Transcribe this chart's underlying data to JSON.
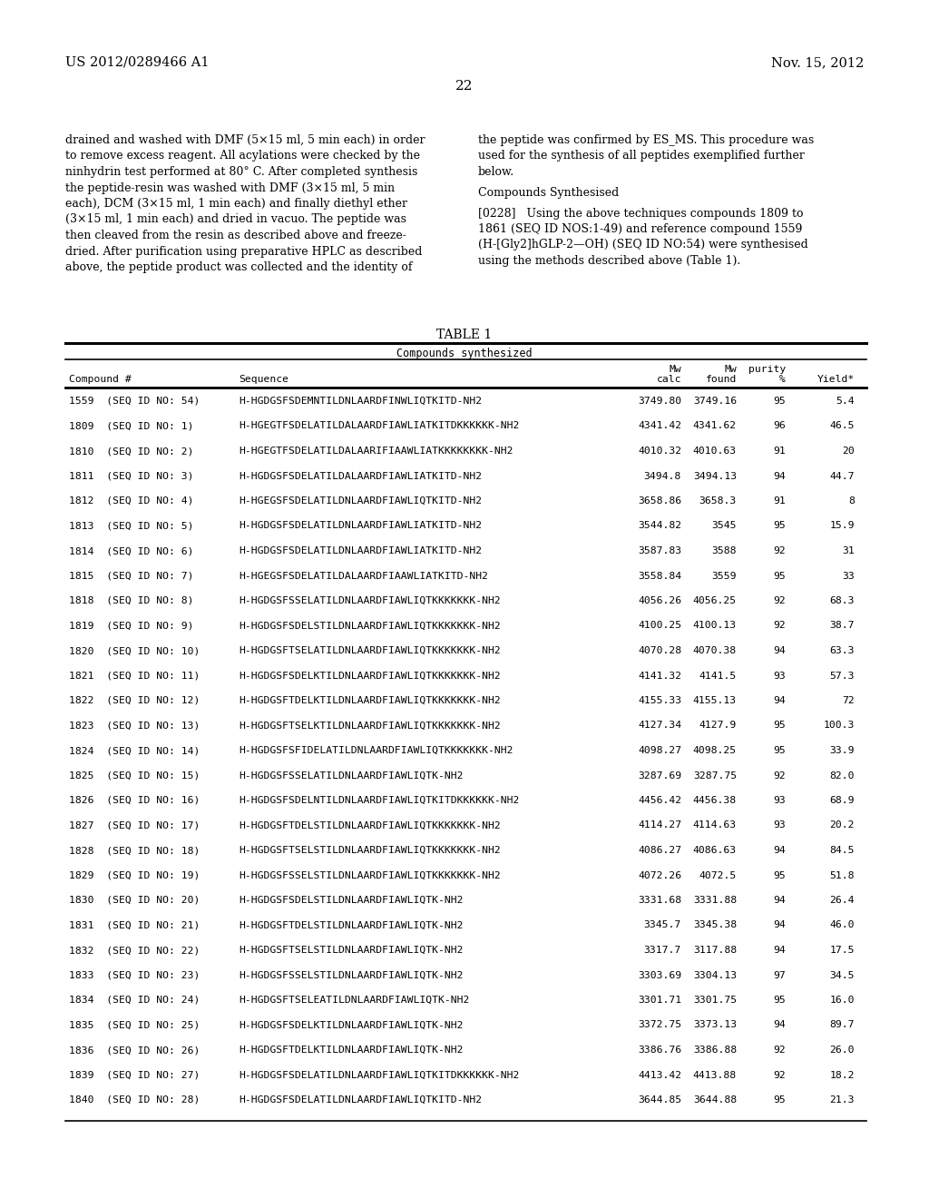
{
  "background_color": "#ffffff",
  "header_left": "US 2012/0289466 A1",
  "header_right": "Nov. 15, 2012",
  "page_number": "22",
  "left_column_text": [
    "drained and washed with DMF (5×15 ml, 5 min each) in order",
    "to remove excess reagent. All acylations were checked by the",
    "ninhydrin test performed at 80° C. After completed synthesis",
    "the peptide-resin was washed with DMF (3×15 ml, 5 min",
    "each), DCM (3×15 ml, 1 min each) and finally diethyl ether",
    "(3×15 ml, 1 min each) and dried in vacuo. The peptide was",
    "then cleaved from the resin as described above and freeze-",
    "dried. After purification using preparative HPLC as described",
    "above, the peptide product was collected and the identity of"
  ],
  "right_col_line1": [
    "the peptide was confirmed by ES_MS. This procedure was",
    "used for the synthesis of all peptides exemplified further",
    "below."
  ],
  "right_col_heading": "Compounds Synthesised",
  "right_col_para": [
    "[0228]   Using the above techniques compounds 1809 to",
    "1861 (SEQ ID NOS:1-49) and reference compound 1559",
    "(H-[Gly2]hGLP-2—OH) (SEQ ID NO:54) were synthesised",
    "using the methods described above (Table 1)."
  ],
  "table_title": "TABLE 1",
  "table_subtitle": "Compounds synthesized",
  "table_data": [
    [
      "1559  (SEQ ID NO: 54)",
      "H-HGDGSFSDEMNTILDNLAARDFINWLIQTKITD-NH2",
      "3749.80",
      "3749.16",
      "95",
      "5.4"
    ],
    [
      "1809  (SEQ ID NO: 1)",
      "H-HGEGTFSDELATILDALAARDFIAWLIATKITDKKKKKK-NH2",
      "4341.42",
      "4341.62",
      "96",
      "46.5"
    ],
    [
      "1810  (SEQ ID NO: 2)",
      "H-HGEGTFSDELATILDALAARIFIAAWLIATKKKKKKKK-NH2",
      "4010.32",
      "4010.63",
      "91",
      "20"
    ],
    [
      "1811  (SEQ ID NO: 3)",
      "H-HGDGSFSDELATILDALAARDFIAWLIATKITD-NH2",
      "3494.8",
      "3494.13",
      "94",
      "44.7"
    ],
    [
      "1812  (SEQ ID NO: 4)",
      "H-HGEGSFSDELATILDNLAARDFIAWLIQTKITD-NH2",
      "3658.86",
      "3658.3",
      "91",
      "8"
    ],
    [
      "1813  (SEQ ID NO: 5)",
      "H-HGDGSFSDELATILDNLAARDFIAWLIATKITD-NH2",
      "3544.82",
      "3545",
      "95",
      "15.9"
    ],
    [
      "1814  (SEQ ID NO: 6)",
      "H-HGDGSFSDELATILDNLAARDFIAWLIATKITD-NH2",
      "3587.83",
      "3588",
      "92",
      "31"
    ],
    [
      "1815  (SEQ ID NO: 7)",
      "H-HGEGSFSDELATILDALAARDFIAAWLIATKITD-NH2",
      "3558.84",
      "3559",
      "95",
      "33"
    ],
    [
      "1818  (SEQ ID NO: 8)",
      "H-HGDGSFSSELATILDNLAARDFIAWLIQTKKKKKKK-NH2",
      "4056.26",
      "4056.25",
      "92",
      "68.3"
    ],
    [
      "1819  (SEQ ID NO: 9)",
      "H-HGDGSFSDELSTILDNLAARDFIAWLIQTKKKKKKK-NH2",
      "4100.25",
      "4100.13",
      "92",
      "38.7"
    ],
    [
      "1820  (SEQ ID NO: 10)",
      "H-HGDGSFTSELATILDNLAARDFIAWLIQTKKKKKKK-NH2",
      "4070.28",
      "4070.38",
      "94",
      "63.3"
    ],
    [
      "1821  (SEQ ID NO: 11)",
      "H-HGDGSFSDELKTILDNLAARDFIAWLIQTKKKKKKK-NH2",
      "4141.32",
      "4141.5",
      "93",
      "57.3"
    ],
    [
      "1822  (SEQ ID NO: 12)",
      "H-HGDGSFTDELKTILDNLAARDFIAWLIQTKKKKKKK-NH2",
      "4155.33",
      "4155.13",
      "94",
      "72"
    ],
    [
      "1823  (SEQ ID NO: 13)",
      "H-HGDGSFTSELKTILDNLAARDFIAWLIQTKKKKKKK-NH2",
      "4127.34",
      "4127.9",
      "95",
      "100.3"
    ],
    [
      "1824  (SEQ ID NO: 14)",
      "H-HGDGSFSFIDELATILDNLAARDFIAWLIQTKKKKKKK-NH2",
      "4098.27",
      "4098.25",
      "95",
      "33.9"
    ],
    [
      "1825  (SEQ ID NO: 15)",
      "H-HGDGSFSSELATILDNLAARDFIAWLIQTK-NH2",
      "3287.69",
      "3287.75",
      "92",
      "82.0"
    ],
    [
      "1826  (SEQ ID NO: 16)",
      "H-HGDGSFSDELNTILDNLAARDFIAWLIQTKITDKKKKKK-NH2",
      "4456.42",
      "4456.38",
      "93",
      "68.9"
    ],
    [
      "1827  (SEQ ID NO: 17)",
      "H-HGDGSFTDELSTILDNLAARDFIAWLIQTKKKKKKK-NH2",
      "4114.27",
      "4114.63",
      "93",
      "20.2"
    ],
    [
      "1828  (SEQ ID NO: 18)",
      "H-HGDGSFTSELSTILDNLAARDFIAWLIQTKKKKKKK-NH2",
      "4086.27",
      "4086.63",
      "94",
      "84.5"
    ],
    [
      "1829  (SEQ ID NO: 19)",
      "H-HGDGSFSSELSTILDNLAARDFIAWLIQTKKKKKKK-NH2",
      "4072.26",
      "4072.5",
      "95",
      "51.8"
    ],
    [
      "1830  (SEQ ID NO: 20)",
      "H-HGDGSFSDELSTILDNLAARDFIAWLIQTK-NH2",
      "3331.68",
      "3331.88",
      "94",
      "26.4"
    ],
    [
      "1831  (SEQ ID NO: 21)",
      "H-HGDGSFTDELSTILDNLAARDFIAWLIQTK-NH2",
      "3345.7",
      "3345.38",
      "94",
      "46.0"
    ],
    [
      "1832  (SEQ ID NO: 22)",
      "H-HGDGSFTSELSTILDNLAARDFIAWLIQTK-NH2",
      "3317.7",
      "3117.88",
      "94",
      "17.5"
    ],
    [
      "1833  (SEQ ID NO: 23)",
      "H-HGDGSFSSELSTILDNLAARDFIAWLIQTK-NH2",
      "3303.69",
      "3304.13",
      "97",
      "34.5"
    ],
    [
      "1834  (SEQ ID NO: 24)",
      "H-HGDGSFTSELEATILDNLAARDFIAWLIQTK-NH2",
      "3301.71",
      "3301.75",
      "95",
      "16.0"
    ],
    [
      "1835  (SEQ ID NO: 25)",
      "H-HGDGSFSDELKTILDNLAARDFIAWLIQTK-NH2",
      "3372.75",
      "3373.13",
      "94",
      "89.7"
    ],
    [
      "1836  (SEQ ID NO: 26)",
      "H-HGDGSFTDELKTILDNLAARDFIAWLIQTK-NH2",
      "3386.76",
      "3386.88",
      "92",
      "26.0"
    ],
    [
      "1839  (SEQ ID NO: 27)",
      "H-HGDGSFSDELATILDNLAARDFIAWLIQTKITDKKKKKK-NH2",
      "4413.42",
      "4413.88",
      "92",
      "18.2"
    ],
    [
      "1840  (SEQ ID NO: 28)",
      "H-HGDGSFSDELATILDNLAARDFIAWLIQTKITD-NH2",
      "3644.85",
      "3644.88",
      "95",
      "21.3"
    ]
  ]
}
